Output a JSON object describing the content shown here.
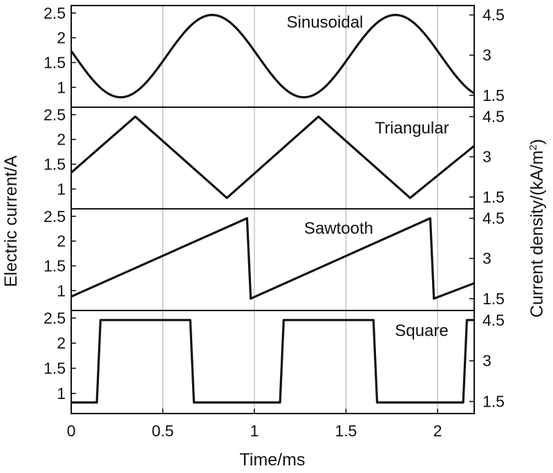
{
  "chart_data": {
    "type": "line",
    "xlabel": "Time/ms",
    "ylabel_left": "Electric current/A",
    "ylabel_right_prefix": "Current density/(kA/m",
    "ylabel_right_superscript": "2",
    "ylabel_right_suffix": ")",
    "x_ticks": [
      0,
      0.5,
      1,
      1.5,
      2
    ],
    "x_tick_labels": [
      "0",
      "0.5",
      "1",
      "1.5",
      "2"
    ],
    "xlim": [
      0,
      2.2
    ],
    "ylim": [
      0.6,
      2.65
    ],
    "y_ticks": [
      1,
      1.5,
      2,
      2.5
    ],
    "y_tick_labels": [
      "1",
      "1.5",
      "2",
      "2.5"
    ],
    "right_ticks_current": [
      0.84,
      1.65,
      2.46
    ],
    "right_tick_labels": [
      "1.5",
      "3",
      "4.5"
    ],
    "grid": true,
    "panels": [
      {
        "title": "Sinusoidal",
        "waveform": "sinusoidal",
        "period_ms": 1.0,
        "min": 0.8,
        "max": 2.46,
        "peak_times_ms": [
          0.77,
          1.77
        ],
        "trough_times_ms": [
          0.27,
          1.27
        ],
        "value_at_0": 1.72,
        "value_at_2_2": 0.8
      },
      {
        "title": "Triangular",
        "waveform": "triangular",
        "x": [
          0,
          0.35,
          0.85,
          1.35,
          1.85,
          2.2
        ],
        "y": [
          1.33,
          2.46,
          0.82,
          2.46,
          0.82,
          1.87
        ]
      },
      {
        "title": "Sawtooth",
        "waveform": "sawtooth",
        "x": [
          0,
          0.96,
          0.98,
          1.96,
          1.98,
          2.2
        ],
        "y": [
          0.88,
          2.46,
          0.84,
          2.46,
          0.84,
          1.15
        ]
      },
      {
        "title": "Square",
        "waveform": "square",
        "x": [
          0,
          0.14,
          0.16,
          0.65,
          0.67,
          1.14,
          1.16,
          1.65,
          1.67,
          2.14,
          2.16,
          2.2
        ],
        "y": [
          0.82,
          0.82,
          2.46,
          2.46,
          0.82,
          0.82,
          2.46,
          2.46,
          0.82,
          0.82,
          2.46,
          2.46
        ]
      }
    ]
  }
}
